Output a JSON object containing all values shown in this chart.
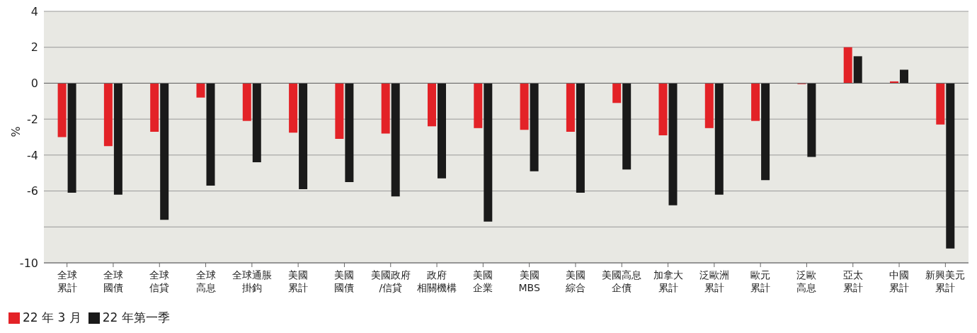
{
  "chart_data": {
    "type": "bar",
    "ylabel": "%",
    "categories": [
      "全球累計",
      "全球國債",
      "全球信貸",
      "全球高息",
      "全球通脹掛鈎",
      "美國累計",
      "美國國債",
      "美國政府/信貸",
      "政府相關機構",
      "美國企業",
      "美國MBS",
      "美國綜合",
      "美國高息企債",
      "加拿大累計",
      "泛歐洲累計",
      "歐元累計",
      "泛歐高息",
      "亞太累計",
      "中國累計",
      "新興美元累計"
    ],
    "series": [
      {
        "name": "22 年 3 月",
        "color": "#e32227",
        "values": [
          -3.0,
          -3.5,
          -2.7,
          -0.8,
          -2.1,
          -2.75,
          -3.1,
          -2.8,
          -2.4,
          -2.5,
          -2.6,
          -2.7,
          -1.1,
          -2.9,
          -2.5,
          -2.1,
          -0.05,
          2.0,
          0.1,
          -2.3
        ]
      },
      {
        "name": "22 年第一季",
        "color": "#1a1a1a",
        "values": [
          -6.1,
          -6.2,
          -7.6,
          -5.7,
          -4.4,
          -5.9,
          -5.5,
          -6.3,
          -5.3,
          -7.7,
          -4.9,
          -6.1,
          -4.8,
          -6.8,
          -6.2,
          -5.4,
          -4.1,
          1.5,
          0.75,
          -9.2
        ]
      }
    ],
    "ylim": [
      -10,
      4
    ],
    "yticks": [
      4,
      2,
      0,
      -2,
      -4,
      -6,
      {
        "value": -8,
        "label": null
      },
      -10
    ],
    "grid": "y",
    "legend": "bottom left"
  }
}
